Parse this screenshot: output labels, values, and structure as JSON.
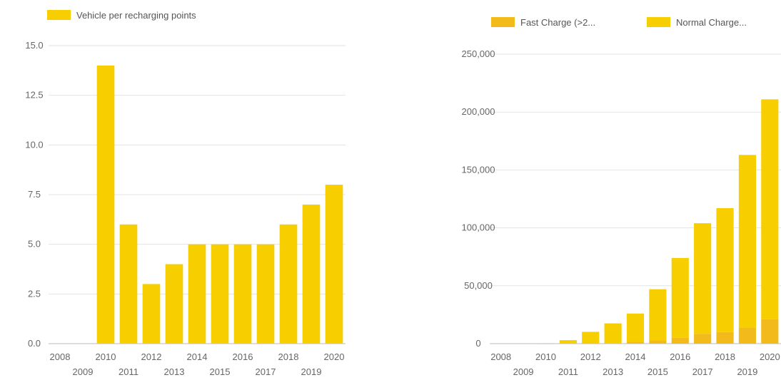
{
  "chart_data": [
    {
      "type": "bar",
      "legend": {
        "position": "top-left",
        "entries": [
          "Vehicle per recharging points"
        ]
      },
      "categories": [
        "2008",
        "2009",
        "2010",
        "2011",
        "2012",
        "2013",
        "2014",
        "2015",
        "2016",
        "2017",
        "2018",
        "2019",
        "2020"
      ],
      "series": [
        {
          "name": "Vehicle per recharging points",
          "color": "#F7CE00",
          "values": [
            0,
            0,
            14,
            6,
            3,
            4,
            5,
            5,
            5,
            5,
            6,
            7,
            8
          ]
        }
      ],
      "ylim": [
        0,
        15
      ],
      "yticks": [
        0,
        2.5,
        5,
        7.5,
        10,
        12.5,
        15
      ],
      "ytick_labels": [
        "0.0",
        "2.5",
        "5.0",
        "7.5",
        "10.0",
        "12.5",
        "15.0"
      ],
      "grid": true
    },
    {
      "type": "bar",
      "stacked": true,
      "legend": {
        "position": "top",
        "entries": [
          "Fast Charge (>2...",
          "Normal Charge..."
        ]
      },
      "categories": [
        "2008",
        "2009",
        "2010",
        "2011",
        "2012",
        "2013",
        "2014",
        "2015",
        "2016",
        "2017",
        "2018",
        "2019",
        "2020"
      ],
      "series": [
        {
          "name": "Fast Charge (>2...",
          "color": "#F2BA1A",
          "values": [
            0,
            0,
            0,
            0,
            200,
            500,
            1500,
            3000,
            5000,
            8500,
            10000,
            14000,
            21000
          ]
        },
        {
          "name": "Normal Charge...",
          "color": "#F7CE00",
          "values": [
            0,
            0,
            400,
            3000,
            10000,
            17000,
            24500,
            44000,
            69000,
            95500,
            107000,
            149000,
            190000
          ]
        }
      ],
      "ylim": [
        0,
        250000
      ],
      "yticks": [
        0,
        50000,
        100000,
        150000,
        200000,
        250000
      ],
      "ytick_labels": [
        "0",
        "50,000",
        "100,000",
        "150,000",
        "200,000",
        "250,000"
      ],
      "grid": true
    }
  ]
}
